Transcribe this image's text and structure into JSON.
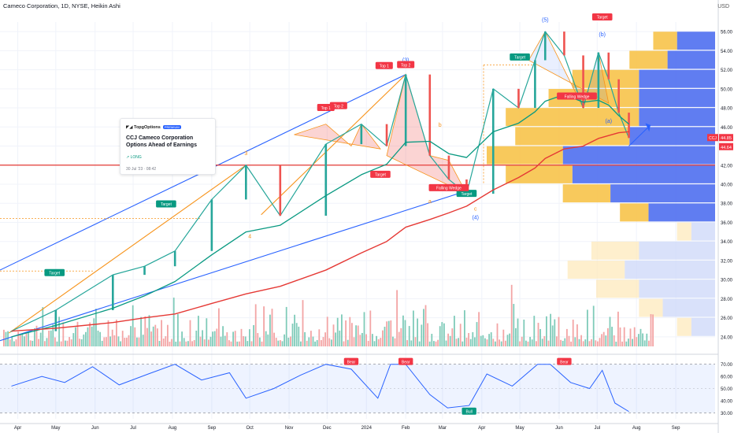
{
  "header": {
    "title": "Cameco Corporation, 1D, NYSE, Heikin Ashi",
    "currency": "USD"
  },
  "idea_card": {
    "source": "TopgOptions",
    "badge": "PREMIUM",
    "title": "CCJ Cameco Corporation Options Ahead of Earnings",
    "direction": "LONG",
    "date": "30 Jul '23 · 08:42"
  },
  "price_badges": {
    "symbol": "CCJ",
    "last": "44.85",
    "second": "44.64"
  },
  "chart_data": [
    {
      "type": "line",
      "title": "Cameco Corporation, 1D, NYSE, Heikin Ashi",
      "price_axis_ticks": [
        "56.00",
        "54.00",
        "52.00",
        "50.00",
        "48.00",
        "46.00",
        "44.00",
        "42.00",
        "40.00",
        "38.00",
        "36.00",
        "34.00",
        "32.00",
        "30.00",
        "28.00",
        "26.00",
        "24.00"
      ],
      "time_axis_ticks": [
        "Apr",
        "May",
        "Jun",
        "Jul",
        "Aug",
        "Sep",
        "Oct",
        "Nov",
        "Dec",
        "2024",
        "Feb",
        "Mar",
        "Apr",
        "May",
        "Jun",
        "Jul",
        "Aug",
        "Sep"
      ],
      "ylim": [
        23.0,
        57.0
      ],
      "x": [
        "2023-03-27",
        "2023-05-01",
        "2023-06-15",
        "2023-07-10",
        "2023-08-03",
        "2023-09-01",
        "2023-09-28",
        "2023-10-25",
        "2023-11-30",
        "2023-12-28",
        "2024-01-17",
        "2024-02-01",
        "2024-02-20",
        "2024-03-06",
        "2024-03-20",
        "2024-04-10",
        "2024-04-30",
        "2024-05-13",
        "2024-05-21",
        "2024-06-05",
        "2024-06-20",
        "2024-07-02",
        "2024-07-10",
        "2024-07-18",
        "2024-07-26"
      ],
      "series": [
        {
          "values": [
            24.6,
            26.8,
            30.5,
            31.4,
            33.0,
            38.4,
            42.0,
            36.7,
            44.2,
            46.3,
            44.0,
            51.5,
            43.0,
            40.5,
            39.0,
            50.0,
            48.0,
            53.0,
            56.0,
            53.5,
            48.0,
            53.8,
            51.0,
            47.5,
            44.85
          ]
        },
        {
          "values": [
            24.0,
            25.2,
            27.0,
            28.3,
            29.8,
            32.6,
            35.0,
            35.7,
            38.8,
            41.0,
            42.1,
            44.4,
            44.5,
            43.2,
            42.8,
            45.5,
            46.4,
            47.6,
            48.7,
            49.4,
            48.6,
            48.8,
            48.3,
            47.2,
            46.3
          ]
        },
        {
          "values": [
            24.6,
            24.9,
            25.5,
            26.0,
            26.4,
            27.5,
            28.5,
            29.3,
            31.0,
            32.8,
            34.0,
            35.5,
            36.3,
            37.0,
            37.7,
            39.4,
            40.7,
            41.7,
            42.7,
            43.7,
            44.0,
            44.8,
            45.1,
            45.4,
            45.5
          ]
        }
      ],
      "volume_profile": {
        "price_levels": [
          55.0,
          53.0,
          51.0,
          49.0,
          47.0,
          45.0,
          43.0,
          41.0,
          39.0,
          37.0,
          35.0,
          33.0,
          31.0,
          29.0,
          27.0,
          25.0
        ],
        "up_volume": [
          5,
          8,
          14,
          19,
          28,
          24,
          16,
          14,
          10,
          6,
          3,
          10,
          12,
          9,
          5,
          3
        ],
        "down_volume": [
          8,
          10,
          16,
          16,
          16,
          18,
          32,
          30,
          22,
          14,
          5,
          16,
          19,
          16,
          11,
          5
        ]
      },
      "annotations": [
        "(5)",
        "(b)",
        "(3)",
        "5",
        "3",
        "4",
        "(a)",
        "b",
        "a",
        "c",
        "(4)",
        "Top 1",
        "Top 2",
        "Top 1",
        "Top 2",
        "Target",
        "Target",
        "Target",
        "Target",
        "Target",
        "Target",
        "Falling Wedge",
        "Falling Wedge"
      ]
    },
    {
      "type": "line",
      "title": "",
      "ylim": [
        25,
        75
      ],
      "y_ticks": [
        "70.00",
        "60.00",
        "50.00",
        "40.00",
        "30.00"
      ],
      "x": [
        "2023-03-27",
        "2023-04-20",
        "2023-05-08",
        "2023-05-30",
        "2023-06-20",
        "2023-07-13",
        "2023-08-03",
        "2023-08-24",
        "2023-09-15",
        "2023-09-28",
        "2023-10-20",
        "2023-11-10",
        "2023-11-30",
        "2023-12-20",
        "2024-01-10",
        "2024-01-20",
        "2024-02-01",
        "2024-02-20",
        "2024-03-05",
        "2024-03-22",
        "2024-04-05",
        "2024-04-25",
        "2024-05-15",
        "2024-05-25",
        "2024-06-10",
        "2024-06-25",
        "2024-07-05",
        "2024-07-15",
        "2024-07-26"
      ],
      "series": [
        {
          "values": [
            52,
            60,
            55,
            68,
            53,
            62,
            70,
            57,
            63,
            42,
            50,
            61,
            70,
            66,
            42,
            70,
            70,
            45,
            34,
            36,
            62,
            52,
            70,
            70,
            55,
            50,
            65,
            38,
            31
          ]
        }
      ],
      "bands": [
        30,
        70
      ],
      "annotations": [
        "Bear",
        "Bear",
        "Bear",
        "Bull"
      ]
    }
  ]
}
